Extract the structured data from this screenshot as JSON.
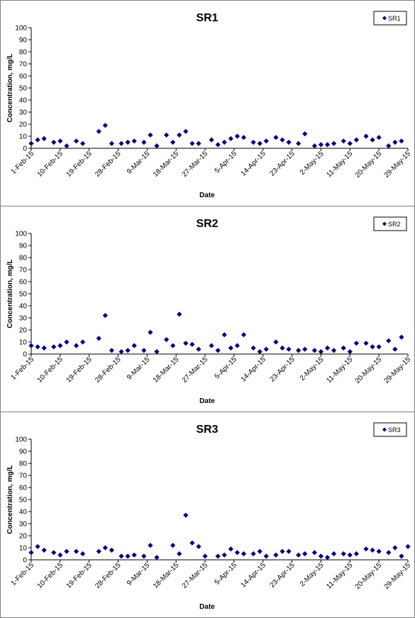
{
  "chart_data": [
    {
      "type": "scatter",
      "title": "SR1",
      "xlabel": "Date",
      "ylabel": "Concentration, mg/L",
      "ylim": [
        0,
        100
      ],
      "yticks": [
        "0",
        "10",
        "20",
        "30",
        "40",
        "50",
        "60",
        "70",
        "80",
        "90",
        "100"
      ],
      "xlim": [
        "2015-02-01",
        "2015-05-29"
      ],
      "xticks": [
        "1-Feb-15",
        "10-Feb-15",
        "19-Feb-15",
        "28-Feb-15",
        "9-Mar-15",
        "18-Mar-15",
        "27-Mar-15",
        "5-Apr-15",
        "14-Apr-15",
        "23-Apr-15",
        "2-May-15",
        "11-May-15",
        "20-May-15",
        "29-May-15"
      ],
      "grid": false,
      "legend_position": "top-right",
      "series": [
        {
          "name": "SR1",
          "color": "#00007f",
          "marker": "diamond",
          "points": [
            [
              "2015-02-01",
              4
            ],
            [
              "2015-02-03",
              7
            ],
            [
              "2015-02-05",
              8
            ],
            [
              "2015-02-08",
              5
            ],
            [
              "2015-02-10",
              6
            ],
            [
              "2015-02-12",
              2
            ],
            [
              "2015-02-15",
              6
            ],
            [
              "2015-02-17",
              4
            ],
            [
              "2015-02-22",
              14
            ],
            [
              "2015-02-24",
              19
            ],
            [
              "2015-02-26",
              4
            ],
            [
              "2015-03-01",
              4
            ],
            [
              "2015-03-03",
              5
            ],
            [
              "2015-03-05",
              6
            ],
            [
              "2015-03-08",
              5
            ],
            [
              "2015-03-10",
              11
            ],
            [
              "2015-03-12",
              2
            ],
            [
              "2015-03-15",
              11
            ],
            [
              "2015-03-17",
              5
            ],
            [
              "2015-03-19",
              11
            ],
            [
              "2015-03-21",
              14
            ],
            [
              "2015-03-23",
              4
            ],
            [
              "2015-03-25",
              4
            ],
            [
              "2015-03-29",
              7
            ],
            [
              "2015-03-31",
              3
            ],
            [
              "2015-04-02",
              5
            ],
            [
              "2015-04-04",
              8
            ],
            [
              "2015-04-06",
              10
            ],
            [
              "2015-04-08",
              9
            ],
            [
              "2015-04-11",
              5
            ],
            [
              "2015-04-13",
              4
            ],
            [
              "2015-04-15",
              6
            ],
            [
              "2015-04-18",
              9
            ],
            [
              "2015-04-20",
              7
            ],
            [
              "2015-04-22",
              5
            ],
            [
              "2015-04-25",
              4
            ],
            [
              "2015-04-27",
              12
            ],
            [
              "2015-04-30",
              2
            ],
            [
              "2015-05-02",
              3
            ],
            [
              "2015-05-04",
              3
            ],
            [
              "2015-05-06",
              4
            ],
            [
              "2015-05-09",
              6
            ],
            [
              "2015-05-11",
              4
            ],
            [
              "2015-05-13",
              7
            ],
            [
              "2015-05-16",
              10
            ],
            [
              "2015-05-18",
              7
            ],
            [
              "2015-05-20",
              9
            ],
            [
              "2015-05-23",
              2
            ],
            [
              "2015-05-25",
              5
            ],
            [
              "2015-05-27",
              6
            ]
          ]
        }
      ]
    },
    {
      "type": "scatter",
      "title": "SR2",
      "xlabel": "Date",
      "ylabel": "Concentration, mg/L",
      "ylim": [
        0,
        100
      ],
      "yticks": [
        "0",
        "10",
        "20",
        "30",
        "40",
        "50",
        "60",
        "70",
        "80",
        "90",
        "100"
      ],
      "xlim": [
        "2015-02-01",
        "2015-05-29"
      ],
      "xticks": [
        "1-Feb-15",
        "10-Feb-15",
        "19-Feb-15",
        "28-Feb-15",
        "9-Mar-15",
        "18-Mar-15",
        "27-Mar-15",
        "5-Apr-15",
        "14-Apr-15",
        "23-Apr-15",
        "2-May-15",
        "11-May-15",
        "20-May-15",
        "29-May-15"
      ],
      "grid": false,
      "legend_position": "top-right",
      "series": [
        {
          "name": "SR2",
          "color": "#00007f",
          "marker": "diamond",
          "points": [
            [
              "2015-02-01",
              7
            ],
            [
              "2015-02-03",
              6
            ],
            [
              "2015-02-05",
              5
            ],
            [
              "2015-02-08",
              6
            ],
            [
              "2015-02-10",
              7
            ],
            [
              "2015-02-12",
              10
            ],
            [
              "2015-02-15",
              7
            ],
            [
              "2015-02-17",
              10
            ],
            [
              "2015-02-22",
              13
            ],
            [
              "2015-02-24",
              32
            ],
            [
              "2015-02-26",
              3
            ],
            [
              "2015-03-01",
              2
            ],
            [
              "2015-03-03",
              3
            ],
            [
              "2015-03-05",
              7
            ],
            [
              "2015-03-08",
              3
            ],
            [
              "2015-03-10",
              18
            ],
            [
              "2015-03-12",
              2
            ],
            [
              "2015-03-15",
              12
            ],
            [
              "2015-03-17",
              7
            ],
            [
              "2015-03-19",
              33
            ],
            [
              "2015-03-21",
              9
            ],
            [
              "2015-03-23",
              8
            ],
            [
              "2015-03-25",
              4
            ],
            [
              "2015-03-29",
              7
            ],
            [
              "2015-03-31",
              3
            ],
            [
              "2015-04-02",
              16
            ],
            [
              "2015-04-04",
              5
            ],
            [
              "2015-04-06",
              7
            ],
            [
              "2015-04-08",
              16
            ],
            [
              "2015-04-11",
              5
            ],
            [
              "2015-04-13",
              2
            ],
            [
              "2015-04-15",
              4
            ],
            [
              "2015-04-18",
              10
            ],
            [
              "2015-04-20",
              5
            ],
            [
              "2015-04-22",
              4
            ],
            [
              "2015-04-25",
              3
            ],
            [
              "2015-04-27",
              4
            ],
            [
              "2015-04-30",
              3
            ],
            [
              "2015-05-02",
              2
            ],
            [
              "2015-05-04",
              5
            ],
            [
              "2015-05-06",
              3
            ],
            [
              "2015-05-09",
              5
            ],
            [
              "2015-05-11",
              2
            ],
            [
              "2015-05-13",
              9
            ],
            [
              "2015-05-16",
              9
            ],
            [
              "2015-05-18",
              6
            ],
            [
              "2015-05-20",
              6
            ],
            [
              "2015-05-23",
              11
            ],
            [
              "2015-05-25",
              4
            ],
            [
              "2015-05-27",
              14
            ]
          ]
        }
      ]
    },
    {
      "type": "scatter",
      "title": "SR3",
      "xlabel": "Date",
      "ylabel": "Concentration, mg/L",
      "ylim": [
        0,
        100
      ],
      "yticks": [
        "0",
        "10",
        "20",
        "30",
        "40",
        "50",
        "60",
        "70",
        "80",
        "90",
        "100"
      ],
      "xlim": [
        "2015-02-01",
        "2015-05-29"
      ],
      "xticks": [
        "1-Feb-15",
        "10-Feb-15",
        "19-Feb-15",
        "28-Feb-15",
        "9-Mar-15",
        "18-Mar-15",
        "27-Mar-15",
        "5-Apr-15",
        "14-Apr-15",
        "23-Apr-15",
        "2-May-15",
        "11-May-15",
        "20-May-15",
        "29-May-15"
      ],
      "grid": false,
      "legend_position": "top-right",
      "series": [
        {
          "name": "SR3",
          "color": "#00007f",
          "marker": "diamond",
          "points": [
            [
              "2015-02-01",
              6
            ],
            [
              "2015-02-03",
              11
            ],
            [
              "2015-02-05",
              8
            ],
            [
              "2015-02-08",
              6
            ],
            [
              "2015-02-10",
              4
            ],
            [
              "2015-02-12",
              7
            ],
            [
              "2015-02-15",
              7
            ],
            [
              "2015-02-17",
              5
            ],
            [
              "2015-02-22",
              7
            ],
            [
              "2015-02-24",
              10
            ],
            [
              "2015-02-26",
              8
            ],
            [
              "2015-03-01",
              3
            ],
            [
              "2015-03-03",
              3
            ],
            [
              "2015-03-05",
              4
            ],
            [
              "2015-03-08",
              3
            ],
            [
              "2015-03-10",
              12
            ],
            [
              "2015-03-12",
              2
            ],
            [
              "2015-03-17",
              12
            ],
            [
              "2015-03-19",
              5
            ],
            [
              "2015-03-21",
              37
            ],
            [
              "2015-03-23",
              14
            ],
            [
              "2015-03-25",
              11
            ],
            [
              "2015-03-27",
              3
            ],
            [
              "2015-03-31",
              3
            ],
            [
              "2015-04-02",
              4
            ],
            [
              "2015-04-04",
              9
            ],
            [
              "2015-04-06",
              6
            ],
            [
              "2015-04-08",
              5
            ],
            [
              "2015-04-11",
              5
            ],
            [
              "2015-04-13",
              7
            ],
            [
              "2015-04-15",
              3
            ],
            [
              "2015-04-18",
              4
            ],
            [
              "2015-04-20",
              7
            ],
            [
              "2015-04-22",
              7
            ],
            [
              "2015-04-25",
              4
            ],
            [
              "2015-04-27",
              5
            ],
            [
              "2015-04-30",
              6
            ],
            [
              "2015-05-02",
              3
            ],
            [
              "2015-05-04",
              2
            ],
            [
              "2015-05-06",
              5
            ],
            [
              "2015-05-09",
              5
            ],
            [
              "2015-05-11",
              4
            ],
            [
              "2015-05-13",
              5
            ],
            [
              "2015-05-16",
              9
            ],
            [
              "2015-05-18",
              8
            ],
            [
              "2015-05-20",
              7
            ],
            [
              "2015-05-23",
              6
            ],
            [
              "2015-05-25",
              10
            ],
            [
              "2015-05-27",
              3
            ],
            [
              "2015-05-29",
              11
            ]
          ]
        }
      ]
    }
  ]
}
